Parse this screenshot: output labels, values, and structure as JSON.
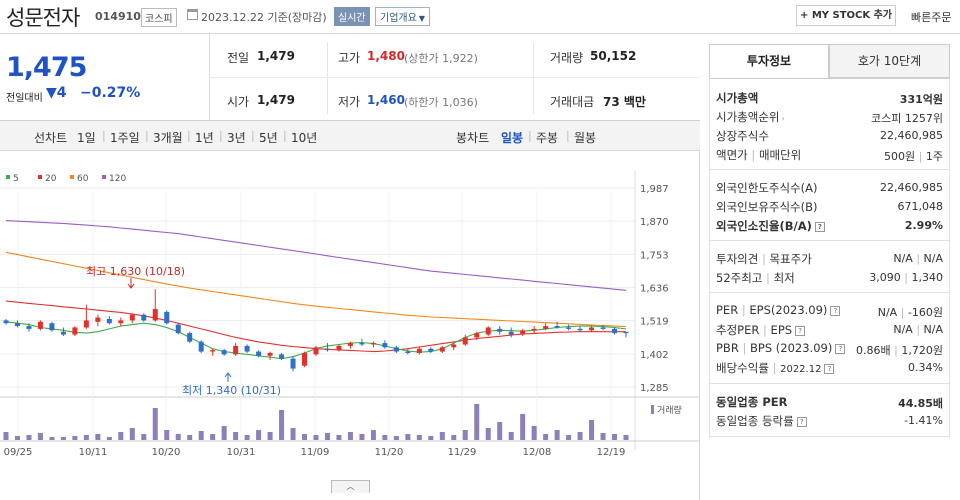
{
  "header": {
    "name": "성문전자",
    "code": "014910",
    "market": "코스피",
    "date": "2023.12.22 기준(장마감)",
    "realtime": "실시간",
    "company_info": "기업개요",
    "mystock": "+ MY STOCK 추가",
    "fast_order": "빠른주문"
  },
  "price": {
    "current": "1,475",
    "diff_label": "전일대비",
    "diff": "▼4",
    "diff_pct": "−0.27%"
  },
  "quote": {
    "prev_label": "전일",
    "prev": "1,479",
    "high_label": "고가",
    "high": "1,480",
    "upper_limit": "(상한가 1,922)",
    "volume_label": "거래량",
    "volume": "50,152",
    "open_label": "시가",
    "open": "1,479",
    "low_label": "저가",
    "low": "1,460",
    "lower_limit": "(하한가 1,036)",
    "amount_label": "거래대금",
    "amount": "73 백만"
  },
  "period": {
    "line_label": "선차트",
    "line_items": [
      "1일",
      "1주일",
      "3개월",
      "1년",
      "3년",
      "5년",
      "10년"
    ],
    "candle_label": "봉차트",
    "candle_items": [
      "일봉",
      "주봉",
      "월봉"
    ],
    "selected": "일봉"
  },
  "chart_data": {
    "type": "candlestick",
    "legend": [
      "5",
      "20",
      "60",
      "120"
    ],
    "legend_colors": [
      "#3cae46",
      "#e2312d",
      "#f08a1e",
      "#9a5fc0"
    ],
    "y_ticks": [
      "1,987",
      "1,870",
      "1,753",
      "1,636",
      "1,519",
      "1,402",
      "1,285"
    ],
    "y_tick_values": [
      1987,
      1870,
      1753,
      1636,
      1519,
      1402,
      1285
    ],
    "x_ticks": [
      "09/25",
      "10/11",
      "10/20",
      "10/31",
      "11/09",
      "11/20",
      "11/29",
      "12/08",
      "12/19"
    ],
    "high_annotation": "최고 1,630 (10/18)",
    "low_annotation": "최저 1,340 (10/31)",
    "volume_label": "거래량",
    "ma120": [
      1872,
      1870,
      1868,
      1866,
      1864,
      1862,
      1859,
      1856,
      1853,
      1850,
      1846,
      1842,
      1838,
      1834,
      1830,
      1826,
      1820,
      1814,
      1808,
      1802,
      1796,
      1790,
      1784,
      1778,
      1772,
      1766,
      1760,
      1754,
      1748,
      1742,
      1736,
      1730,
      1724,
      1718,
      1712,
      1706,
      1700,
      1694,
      1690,
      1686,
      1682,
      1678,
      1674,
      1670,
      1666,
      1662,
      1658,
      1654,
      1650,
      1646,
      1642,
      1638,
      1634,
      1630,
      1626
    ],
    "ma60": [
      1760,
      1752,
      1744,
      1736,
      1728,
      1720,
      1712,
      1704,
      1696,
      1688,
      1680,
      1672,
      1664,
      1656,
      1648,
      1641,
      1634,
      1628,
      1622,
      1616,
      1610,
      1604,
      1598,
      1592,
      1586,
      1580,
      1575,
      1570,
      1566,
      1562,
      1558,
      1554,
      1550,
      1546,
      1542,
      1538,
      1535,
      1532,
      1530,
      1528,
      1526,
      1524,
      1522,
      1520,
      1518,
      1516,
      1514,
      1512,
      1510,
      1508,
      1506,
      1504,
      1502,
      1500,
      1498
    ],
    "ma20": [
      1588,
      1584,
      1580,
      1576,
      1572,
      1568,
      1564,
      1560,
      1556,
      1552,
      1548,
      1542,
      1536,
      1528,
      1520,
      1510,
      1500,
      1490,
      1480,
      1470,
      1460,
      1452,
      1444,
      1438,
      1432,
      1428,
      1424,
      1420,
      1418,
      1416,
      1414,
      1412,
      1410,
      1412,
      1416,
      1420,
      1426,
      1432,
      1438,
      1444,
      1450,
      1456,
      1460,
      1464,
      1468,
      1472,
      1474,
      1476,
      1478,
      1479,
      1480,
      1480,
      1480,
      1480,
      1480
    ],
    "ma5": [
      1515,
      1510,
      1505,
      1495,
      1490,
      1485,
      1478,
      1475,
      1480,
      1490,
      1500,
      1505,
      1510,
      1505,
      1495,
      1480,
      1460,
      1440,
      1420,
      1410,
      1405,
      1400,
      1395,
      1390,
      1385,
      1392,
      1405,
      1420,
      1430,
      1435,
      1440,
      1442,
      1438,
      1430,
      1420,
      1412,
      1408,
      1410,
      1420,
      1440,
      1460,
      1475,
      1482,
      1485,
      1484,
      1482,
      1485,
      1490,
      1495,
      1498,
      1500,
      1500,
      1498,
      1495,
      1490
    ],
    "candles": [
      [
        1520,
        1525,
        1505,
        1510
      ],
      [
        1510,
        1520,
        1495,
        1500
      ],
      [
        1500,
        1510,
        1480,
        1490
      ],
      [
        1490,
        1520,
        1485,
        1515
      ],
      [
        1510,
        1515,
        1480,
        1485
      ],
      [
        1480,
        1495,
        1465,
        1470
      ],
      [
        1470,
        1500,
        1465,
        1495
      ],
      [
        1495,
        1575,
        1490,
        1520
      ],
      [
        1515,
        1540,
        1500,
        1530
      ],
      [
        1525,
        1535,
        1505,
        1510
      ],
      [
        1510,
        1530,
        1500,
        1520
      ],
      [
        1520,
        1545,
        1510,
        1540
      ],
      [
        1540,
        1545,
        1515,
        1520
      ],
      [
        1520,
        1630,
        1515,
        1560
      ],
      [
        1550,
        1555,
        1505,
        1510
      ],
      [
        1505,
        1510,
        1470,
        1475
      ],
      [
        1475,
        1480,
        1440,
        1445
      ],
      [
        1445,
        1450,
        1405,
        1410
      ],
      [
        1410,
        1420,
        1395,
        1415
      ],
      [
        1415,
        1420,
        1395,
        1400
      ],
      [
        1400,
        1440,
        1395,
        1430
      ],
      [
        1430,
        1435,
        1405,
        1410
      ],
      [
        1410,
        1415,
        1390,
        1395
      ],
      [
        1395,
        1410,
        1380,
        1405
      ],
      [
        1400,
        1405,
        1380,
        1385
      ],
      [
        1385,
        1395,
        1340,
        1350
      ],
      [
        1360,
        1410,
        1355,
        1405
      ],
      [
        1400,
        1430,
        1395,
        1425
      ],
      [
        1420,
        1440,
        1410,
        1415
      ],
      [
        1415,
        1435,
        1410,
        1430
      ],
      [
        1430,
        1445,
        1420,
        1440
      ],
      [
        1440,
        1455,
        1430,
        1435
      ],
      [
        1435,
        1445,
        1425,
        1440
      ],
      [
        1440,
        1450,
        1420,
        1425
      ],
      [
        1425,
        1430,
        1405,
        1410
      ],
      [
        1410,
        1420,
        1400,
        1405
      ],
      [
        1405,
        1425,
        1400,
        1420
      ],
      [
        1420,
        1425,
        1405,
        1410
      ],
      [
        1410,
        1430,
        1405,
        1425
      ],
      [
        1425,
        1440,
        1415,
        1435
      ],
      [
        1435,
        1470,
        1430,
        1460
      ],
      [
        1460,
        1480,
        1450,
        1475
      ],
      [
        1470,
        1500,
        1465,
        1495
      ],
      [
        1490,
        1500,
        1470,
        1480
      ],
      [
        1480,
        1495,
        1460,
        1470
      ],
      [
        1470,
        1490,
        1465,
        1485
      ],
      [
        1485,
        1500,
        1475,
        1490
      ],
      [
        1490,
        1510,
        1485,
        1500
      ],
      [
        1500,
        1515,
        1490,
        1495
      ],
      [
        1495,
        1505,
        1485,
        1490
      ],
      [
        1490,
        1500,
        1480,
        1485
      ],
      [
        1485,
        1500,
        1480,
        1495
      ],
      [
        1495,
        1505,
        1485,
        1490
      ],
      [
        1490,
        1495,
        1470,
        1475
      ],
      [
        1479,
        1480,
        1460,
        1475
      ]
    ],
    "volumes": [
      8,
      4,
      5,
      7,
      3,
      3,
      4,
      5,
      6,
      3,
      8,
      12,
      6,
      32,
      10,
      6,
      5,
      9,
      6,
      14,
      8,
      5,
      10,
      8,
      30,
      12,
      6,
      5,
      7,
      5,
      8,
      6,
      10,
      5,
      4,
      6,
      5,
      4,
      8,
      5,
      10,
      36,
      12,
      18,
      8,
      26,
      14,
      6,
      10,
      5,
      8,
      20,
      7,
      6,
      5
    ]
  },
  "right": {
    "tab1": "투자정보",
    "tab2": "호가 10단계",
    "mcap_label": "시가총액",
    "mcap": "331억원",
    "rank_label": "시가총액순위",
    "rank": "코스피 1257위",
    "shares_label": "상장주식수",
    "shares": "22,460,985",
    "par_label": "액면가",
    "unit_label": "매매단위",
    "par": "500원",
    "unit": "1주",
    "foreign_limit_label": "외국인한도주식수(A)",
    "foreign_limit": "22,460,985",
    "foreign_hold_label": "외국인보유주식수(B)",
    "foreign_hold": "671,048",
    "foreign_ratio_label": "외국인소진율(B/A)",
    "foreign_ratio": "2.99%",
    "opinion_label": "투자의견",
    "target_label": "목표주가",
    "opinion": "N/A",
    "target": "N/A",
    "week52_label": "52주최고",
    "week52_low_label": "최저",
    "week52_high": "3,090",
    "week52_low": "1,340",
    "per_label": "PER",
    "eps_label": "EPS(2023.09)",
    "per": "N/A",
    "eps": "-160원",
    "eper_label": "추정PER",
    "eeps_label": "EPS",
    "eper": "N/A",
    "eeps": "N/A",
    "pbr_label": "PBR",
    "bps_label": "BPS (2023.09)",
    "pbr": "0.86배",
    "bps": "1,720원",
    "div_label": "배당수익률",
    "div_year": "2022.12",
    "div": "0.34%",
    "ind_per_label": "동일업종 PER",
    "ind_per": "44.85배",
    "ind_rate_label": "동일업종 등락률",
    "ind_rate": "-1.41%"
  }
}
